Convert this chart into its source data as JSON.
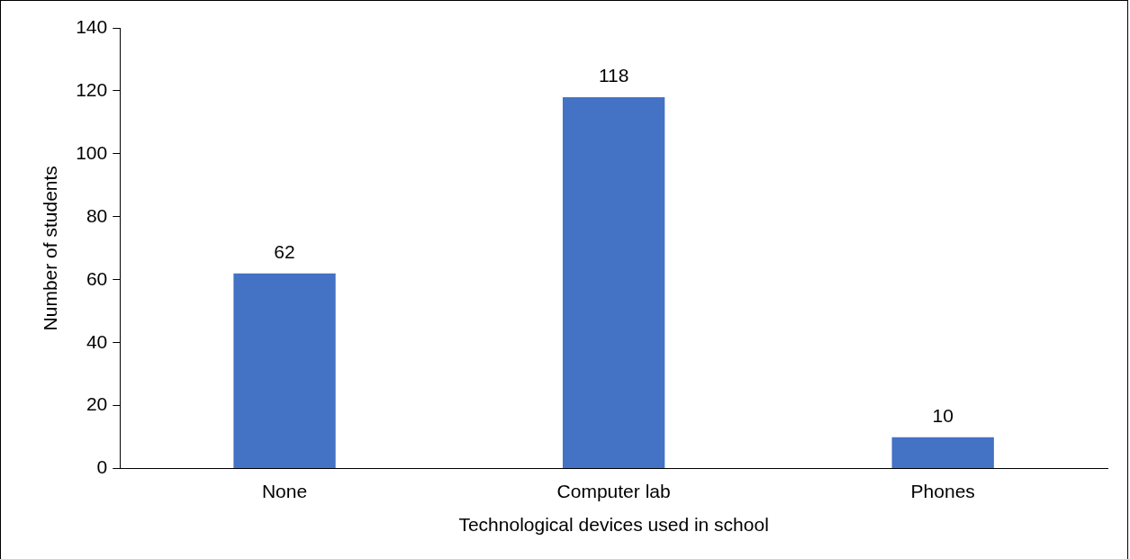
{
  "chart_data": {
    "type": "bar",
    "xlabel": "Technological devices used in school",
    "ylabel": "Number of students",
    "categories": [
      "None",
      "Computer lab",
      "Phones"
    ],
    "values": [
      62,
      118,
      10
    ],
    "color": "#4472c4",
    "ylim": [
      0,
      140
    ],
    "yticks": [
      0,
      20,
      40,
      60,
      80,
      100,
      120,
      140
    ],
    "grid": false,
    "legend": false,
    "data_labels": true
  }
}
